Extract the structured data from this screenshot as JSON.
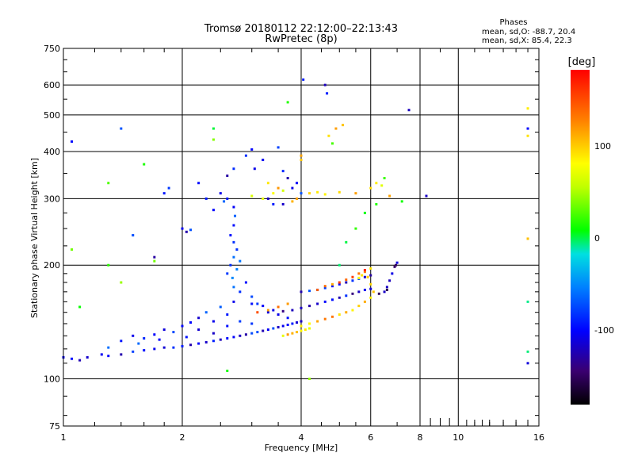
{
  "chart_data": {
    "type": "scatter",
    "title": "Tromsø 20180112 22:12:00–22:13:43",
    "subtitle": "RwPretec (8p)",
    "xlabel": "Frequency [MHz]",
    "ylabel": "Stationary phase Virtual Height [km]",
    "x_scale": "log",
    "y_scale": "log",
    "xlim": [
      1,
      16
    ],
    "ylim": [
      75,
      750
    ],
    "x_ticks": [
      "1",
      "2",
      "4",
      "6",
      "8",
      "10",
      "16"
    ],
    "y_ticks": [
      "75",
      "100",
      "200",
      "300",
      "400",
      "500",
      "600",
      "750"
    ],
    "grid": true,
    "info": {
      "heading": "Phases",
      "line1": "mean, sd,O: -88.7, 20.4",
      "line2": "mean, sd,X:  85.4, 22.3"
    },
    "colorbar": {
      "label": "[deg]",
      "ticks": [
        "100",
        "0",
        "-100"
      ],
      "range": [
        -180,
        180
      ],
      "colormap": "rainbow"
    },
    "series": [
      {
        "id": "o_low_trace",
        "points": [
          [
            1.0,
            114
          ],
          [
            1.05,
            113
          ],
          [
            1.1,
            112
          ],
          [
            1.15,
            114
          ],
          [
            1.25,
            116
          ],
          [
            1.3,
            115
          ],
          [
            1.4,
            116
          ],
          [
            1.5,
            118
          ],
          [
            1.6,
            119
          ],
          [
            1.7,
            120
          ],
          [
            1.8,
            121
          ],
          [
            1.9,
            121
          ],
          [
            2.0,
            122
          ],
          [
            2.1,
            123
          ],
          [
            2.2,
            124
          ],
          [
            2.3,
            125
          ],
          [
            2.4,
            126
          ],
          [
            2.5,
            127
          ],
          [
            2.6,
            128
          ],
          [
            2.7,
            129
          ],
          [
            2.8,
            130
          ],
          [
            2.9,
            131
          ],
          [
            3.0,
            132
          ],
          [
            3.1,
            133
          ],
          [
            3.2,
            134
          ],
          [
            3.3,
            135
          ],
          [
            3.4,
            136
          ],
          [
            3.5,
            137
          ],
          [
            3.6,
            138
          ],
          [
            3.7,
            139
          ],
          [
            3.8,
            140
          ],
          [
            3.9,
            141
          ],
          [
            4.0,
            142
          ]
        ],
        "phase": -100
      },
      {
        "id": "o_scatter_cloud",
        "points": [
          [
            1.3,
            121
          ],
          [
            1.4,
            126
          ],
          [
            1.5,
            130
          ],
          [
            1.6,
            128
          ],
          [
            1.7,
            131
          ],
          [
            1.8,
            135
          ],
          [
            1.9,
            133
          ],
          [
            2.0,
            138
          ],
          [
            2.1,
            141
          ],
          [
            2.2,
            145
          ],
          [
            2.3,
            150
          ],
          [
            2.4,
            142
          ],
          [
            2.5,
            155
          ],
          [
            2.6,
            148
          ],
          [
            2.7,
            160
          ],
          [
            2.8,
            170
          ],
          [
            2.9,
            180
          ],
          [
            3.0,
            165
          ],
          [
            3.1,
            158
          ],
          [
            3.3,
            150
          ],
          [
            3.5,
            148
          ],
          [
            3.7,
            145
          ],
          [
            2.2,
            135
          ],
          [
            2.4,
            132
          ],
          [
            2.6,
            138
          ],
          [
            2.8,
            142
          ],
          [
            3.0,
            140
          ],
          [
            1.55,
            124
          ],
          [
            1.75,
            127
          ],
          [
            2.05,
            129
          ]
        ],
        "phase": -90
      },
      {
        "id": "o_spread_column",
        "points": [
          [
            2.6,
            190
          ],
          [
            2.65,
            200
          ],
          [
            2.7,
            210
          ],
          [
            2.75,
            220
          ],
          [
            2.7,
            230
          ],
          [
            2.65,
            240
          ],
          [
            2.7,
            255
          ],
          [
            2.72,
            270
          ],
          [
            2.7,
            285
          ],
          [
            2.6,
            300
          ],
          [
            2.55,
            295
          ],
          [
            2.7,
            175
          ],
          [
            2.68,
            185
          ],
          [
            2.75,
            195
          ],
          [
            2.8,
            205
          ]
        ],
        "phase": -80
      },
      {
        "id": "o_mid_trace",
        "points": [
          [
            3.0,
            158
          ],
          [
            3.2,
            156
          ],
          [
            3.4,
            152
          ],
          [
            3.6,
            151
          ],
          [
            3.8,
            152
          ],
          [
            4.0,
            154
          ],
          [
            4.2,
            156
          ],
          [
            4.4,
            158
          ],
          [
            4.6,
            160
          ],
          [
            4.8,
            162
          ],
          [
            5.0,
            164
          ],
          [
            5.2,
            166
          ],
          [
            5.4,
            168
          ],
          [
            5.6,
            170
          ],
          [
            5.8,
            172
          ],
          [
            6.0,
            173
          ]
        ],
        "phase": -110
      },
      {
        "id": "o_upper_trace",
        "points": [
          [
            4.0,
            170
          ],
          [
            4.2,
            171
          ],
          [
            4.4,
            172
          ],
          [
            4.6,
            174
          ],
          [
            4.8,
            176
          ],
          [
            5.0,
            178
          ],
          [
            5.2,
            180
          ],
          [
            5.4,
            182
          ],
          [
            5.6,
            184
          ],
          [
            5.8,
            186
          ],
          [
            6.0,
            188
          ]
        ],
        "phase": -100
      },
      {
        "id": "o_cusp_end",
        "points": [
          [
            6.3,
            168
          ],
          [
            6.5,
            170
          ],
          [
            6.6,
            175
          ],
          [
            6.7,
            182
          ],
          [
            6.8,
            190
          ],
          [
            6.9,
            198
          ],
          [
            7.0,
            203
          ],
          [
            6.95,
            200
          ],
          [
            6.6,
            172
          ]
        ],
        "phase": -130
      },
      {
        "id": "x_low_trace",
        "points": [
          [
            4.0,
            138
          ],
          [
            4.2,
            140
          ],
          [
            4.4,
            142
          ],
          [
            4.6,
            144
          ],
          [
            4.8,
            146
          ],
          [
            5.0,
            148
          ],
          [
            5.2,
            150
          ],
          [
            5.4,
            152
          ],
          [
            5.6,
            156
          ],
          [
            5.8,
            160
          ],
          [
            6.0,
            164
          ],
          [
            6.1,
            170
          ],
          [
            6.0,
            178
          ],
          [
            5.9,
            186
          ],
          [
            5.8,
            192
          ],
          [
            6.0,
            196
          ],
          [
            5.7,
            188
          ],
          [
            5.6,
            185
          ]
        ],
        "phase": 110
      },
      {
        "id": "x_mid_trace",
        "points": [
          [
            3.1,
            150
          ],
          [
            3.3,
            152
          ],
          [
            3.5,
            155
          ],
          [
            3.7,
            158
          ],
          [
            4.4,
            172
          ],
          [
            4.6,
            176
          ],
          [
            4.8,
            178
          ],
          [
            5.0,
            180
          ],
          [
            5.2,
            183
          ],
          [
            5.4,
            186
          ],
          [
            5.6,
            190
          ],
          [
            5.8,
            194
          ]
        ],
        "phase": 140
      },
      {
        "id": "x_low_band",
        "points": [
          [
            3.8,
            132
          ],
          [
            3.9,
            133
          ],
          [
            4.0,
            134
          ],
          [
            4.1,
            135
          ],
          [
            4.2,
            136
          ],
          [
            3.7,
            131
          ],
          [
            3.6,
            130
          ]
        ],
        "phase": 95
      },
      {
        "id": "x_high_scatter",
        "points": [
          [
            3.0,
            305
          ],
          [
            3.2,
            300
          ],
          [
            3.4,
            310
          ],
          [
            3.6,
            315
          ],
          [
            4.2,
            310
          ],
          [
            4.4,
            312
          ],
          [
            4.6,
            308
          ],
          [
            5.0,
            312
          ],
          [
            5.5,
            310
          ],
          [
            6.0,
            320
          ],
          [
            6.2,
            330
          ],
          [
            6.4,
            325
          ],
          [
            4.0,
            390
          ],
          [
            4.0,
            380
          ],
          [
            4.7,
            440
          ],
          [
            4.9,
            460
          ],
          [
            5.1,
            470
          ],
          [
            3.3,
            330
          ],
          [
            3.5,
            320
          ],
          [
            6.7,
            305
          ],
          [
            15.0,
            520
          ],
          [
            15.0,
            440
          ],
          [
            15.0,
            235
          ],
          [
            3.8,
            295
          ],
          [
            3.9,
            300
          ]
        ],
        "phase": 90
      },
      {
        "id": "o_high_scatter",
        "points": [
          [
            1.05,
            425
          ],
          [
            1.4,
            460
          ],
          [
            1.8,
            310
          ],
          [
            1.85,
            320
          ],
          [
            2.0,
            250
          ],
          [
            2.05,
            245
          ],
          [
            2.1,
            248
          ],
          [
            2.2,
            330
          ],
          [
            2.3,
            300
          ],
          [
            2.5,
            310
          ],
          [
            2.7,
            360
          ],
          [
            2.9,
            390
          ],
          [
            3.0,
            405
          ],
          [
            3.2,
            380
          ],
          [
            3.5,
            410
          ],
          [
            3.6,
            355
          ],
          [
            3.7,
            340
          ],
          [
            3.8,
            320
          ],
          [
            3.9,
            330
          ],
          [
            4.0,
            310
          ],
          [
            4.05,
            620
          ],
          [
            4.6,
            600
          ],
          [
            4.65,
            570
          ],
          [
            7.5,
            515
          ],
          [
            8.3,
            305
          ],
          [
            15.0,
            460
          ],
          [
            15.0,
            110
          ],
          [
            1.7,
            210
          ],
          [
            1.5,
            240
          ],
          [
            2.4,
            280
          ],
          [
            2.6,
            345
          ],
          [
            3.05,
            360
          ],
          [
            3.3,
            300
          ],
          [
            3.4,
            290
          ],
          [
            3.6,
            290
          ]
        ],
        "phase": -100
      },
      {
        "id": "misc_noise",
        "points": [
          [
            1.05,
            220
          ],
          [
            1.1,
            155
          ],
          [
            1.4,
            180
          ],
          [
            1.3,
            330
          ],
          [
            1.6,
            370
          ],
          [
            2.4,
            430
          ],
          [
            2.4,
            460
          ],
          [
            2.6,
            105
          ],
          [
            3.7,
            540
          ],
          [
            4.2,
            100
          ],
          [
            4.8,
            420
          ],
          [
            5.0,
            200
          ],
          [
            5.2,
            230
          ],
          [
            5.5,
            250
          ],
          [
            5.8,
            275
          ],
          [
            6.2,
            290
          ],
          [
            6.5,
            340
          ],
          [
            7.2,
            295
          ],
          [
            15.0,
            160
          ],
          [
            15.0,
            118
          ],
          [
            1.7,
            205
          ],
          [
            1.3,
            200
          ]
        ],
        "phase": 20
      }
    ]
  }
}
